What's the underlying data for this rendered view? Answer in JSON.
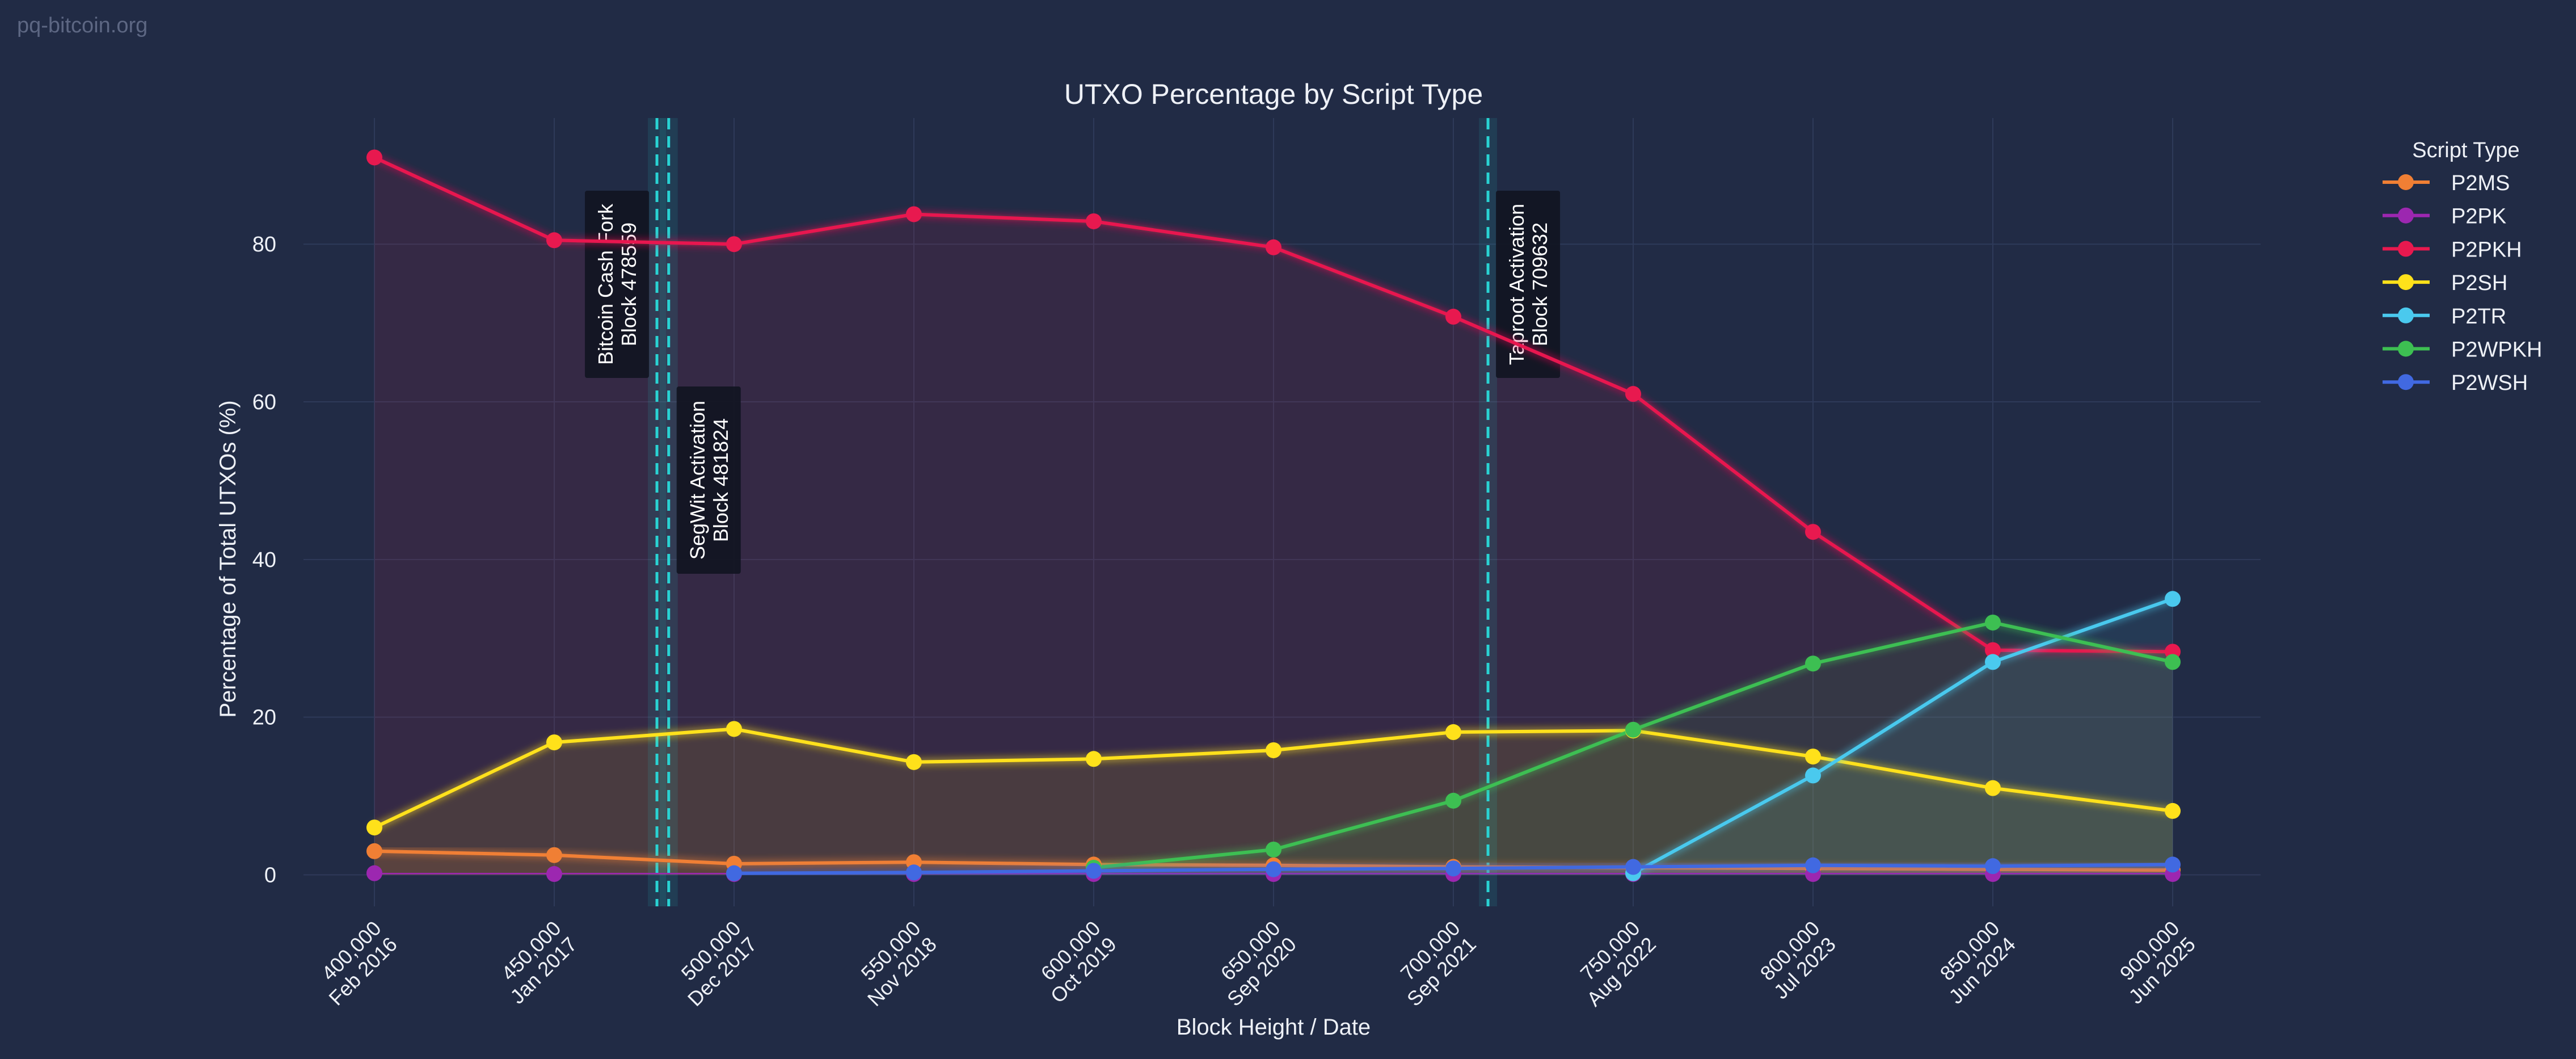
{
  "watermark": "pq-bitcoin.org",
  "chart_data": {
    "type": "line",
    "title": "UTXO Percentage by Script Type",
    "xlabel": "Block Height / Date",
    "ylabel": "Percentage of Total UTXOs (%)",
    "x": [
      400000,
      450000,
      500000,
      550000,
      600000,
      650000,
      700000,
      750000,
      800000,
      850000,
      900000
    ],
    "xlim": [
      400000,
      900000
    ],
    "x_ticks": [
      {
        "value": 400000,
        "height": "400,000",
        "date": "Feb 2016"
      },
      {
        "value": 450000,
        "height": "450,000",
        "date": "Jan 2017"
      },
      {
        "value": 500000,
        "height": "500,000",
        "date": "Dec 2017"
      },
      {
        "value": 550000,
        "height": "550,000",
        "date": "Nov 2018"
      },
      {
        "value": 600000,
        "height": "600,000",
        "date": "Oct 2019"
      },
      {
        "value": 650000,
        "height": "650,000",
        "date": "Sep 2020"
      },
      {
        "value": 700000,
        "height": "700,000",
        "date": "Sep 2021"
      },
      {
        "value": 750000,
        "height": "750,000",
        "date": "Aug 2022"
      },
      {
        "value": 800000,
        "height": "800,000",
        "date": "Jul 2023"
      },
      {
        "value": 850000,
        "height": "850,000",
        "date": "Jun 2024"
      },
      {
        "value": 900000,
        "height": "900,000",
        "date": "Jun 2025"
      }
    ],
    "y_ticks": [
      0,
      20,
      40,
      60,
      80
    ],
    "ylim": [
      -4,
      96
    ],
    "grid": true,
    "legend": {
      "title": "Script Type",
      "placement": "outside-right"
    },
    "series": [
      {
        "name": "P2MS",
        "color": "#f07f34",
        "values": [
          3.0,
          2.5,
          1.4,
          1.6,
          1.3,
          1.2,
          1.0,
          0.9,
          0.8,
          0.7,
          0.6
        ]
      },
      {
        "name": "P2PK",
        "color": "#9c27b0",
        "values": [
          0.2,
          0.1,
          0.1,
          0.1,
          0.1,
          0.1,
          0.1,
          0.1,
          0.1,
          0.1,
          0.1
        ]
      },
      {
        "name": "P2PKH",
        "color": "#e8194f",
        "values": [
          91.0,
          80.5,
          80.0,
          83.8,
          82.9,
          79.6,
          70.8,
          61.0,
          43.5,
          28.5,
          28.3
        ]
      },
      {
        "name": "P2SH",
        "color": "#ffe11a",
        "values": [
          6.0,
          16.8,
          18.5,
          14.3,
          14.7,
          15.8,
          18.1,
          18.3,
          15.0,
          11.0,
          8.1
        ]
      },
      {
        "name": "P2TR",
        "color": "#4ac9ee",
        "values": [
          null,
          null,
          null,
          null,
          null,
          null,
          null,
          0.2,
          12.6,
          27.0,
          35.0
        ]
      },
      {
        "name": "P2WPKH",
        "color": "#3dbf52",
        "values": [
          null,
          null,
          null,
          null,
          0.9,
          3.2,
          9.4,
          18.4,
          26.8,
          32.0,
          27.0
        ]
      },
      {
        "name": "P2WSH",
        "color": "#4169e1",
        "values": [
          null,
          null,
          0.2,
          0.3,
          0.5,
          0.7,
          0.8,
          1.0,
          1.2,
          1.1,
          1.3
        ]
      }
    ],
    "annotations": [
      {
        "label": "Bitcoin Cash Fork",
        "block": "Block 478559",
        "x": 478559
      },
      {
        "label": "SegWit Activation",
        "block": "Block 481824",
        "x": 481824
      },
      {
        "label": "Taproot Activation",
        "block": "Block 709632",
        "x": 709632
      }
    ]
  }
}
